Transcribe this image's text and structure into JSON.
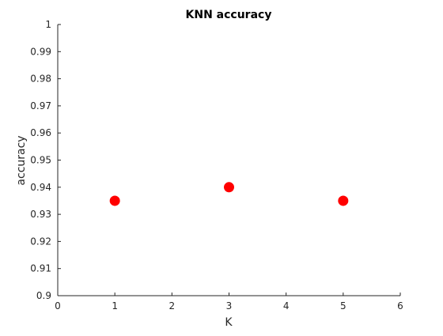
{
  "chart_data": {
    "type": "scatter",
    "title": "KNN accuracy",
    "xlabel": "K",
    "ylabel": "accuracy",
    "xlim": [
      0,
      6
    ],
    "ylim": [
      0.9,
      1
    ],
    "xticks": [
      "0",
      "1",
      "2",
      "3",
      "4",
      "5",
      "6"
    ],
    "yticks": [
      "0.9",
      "0.91",
      "0.92",
      "0.93",
      "0.94",
      "0.95",
      "0.96",
      "0.97",
      "0.98",
      "0.99",
      "1"
    ],
    "grid": false,
    "series": [
      {
        "color": "#ff0000",
        "marker": "circle",
        "points": [
          {
            "x": 1,
            "y": 0.935
          },
          {
            "x": 3,
            "y": 0.94
          },
          {
            "x": 5,
            "y": 0.935
          }
        ]
      }
    ]
  }
}
